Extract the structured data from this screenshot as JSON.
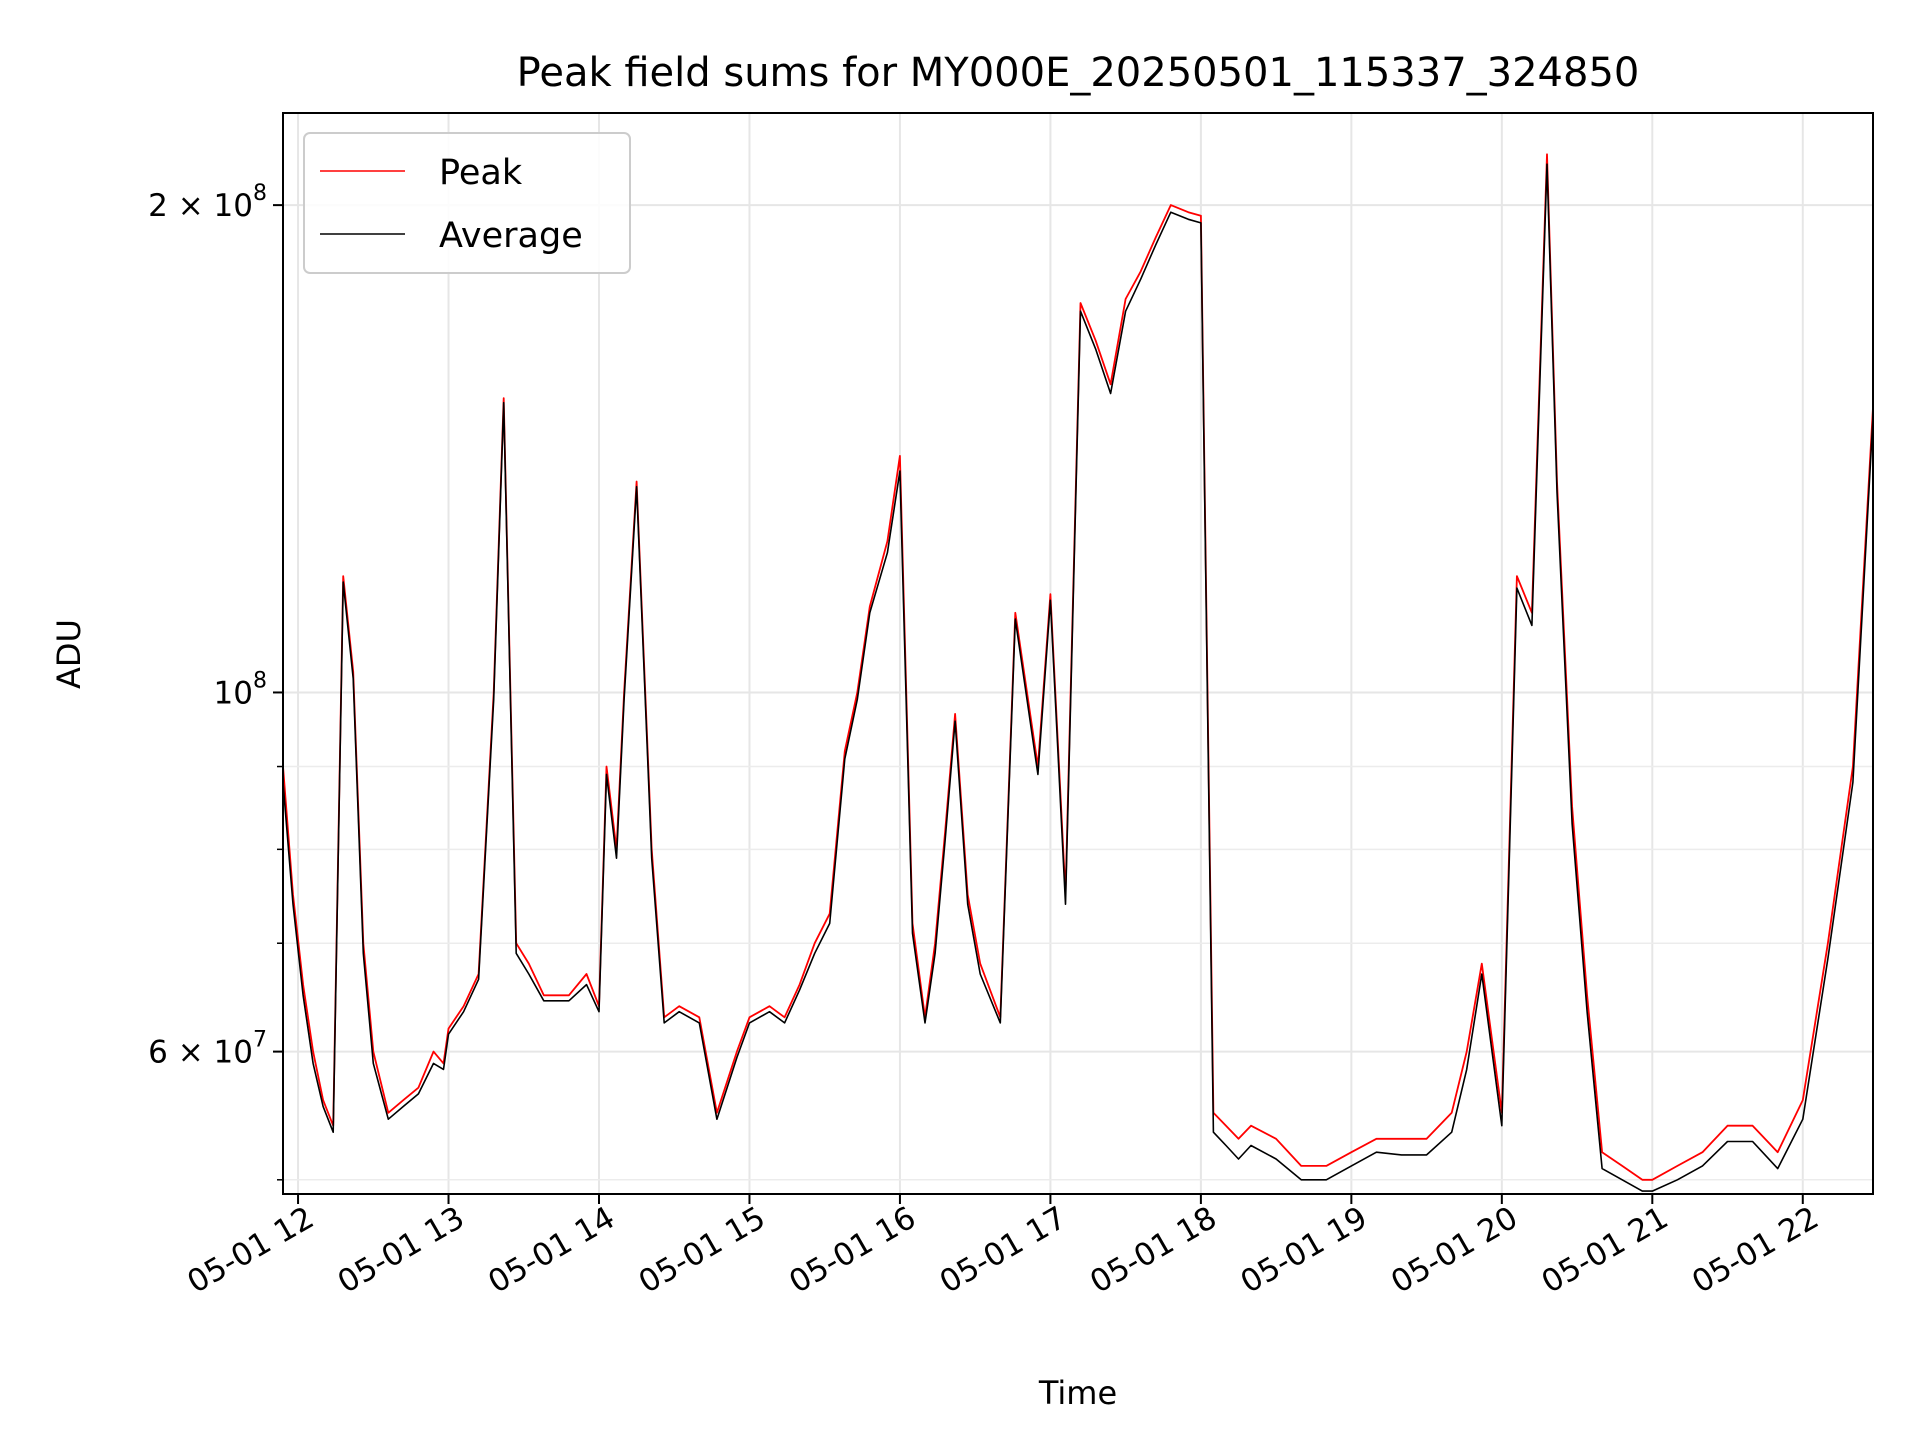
{
  "chart_data": {
    "type": "line",
    "title": "Peak field sums for MY000E_20250501_115337_324850",
    "xlabel": "Time",
    "ylabel": "ADU",
    "yscale": "log",
    "xlim": [
      "2025-05-01 11:54",
      "2025-05-01 22:28"
    ],
    "ylim": [
      49000000,
      228000000
    ],
    "grid": true,
    "legend": {
      "placement": "upper-left",
      "entries": [
        "Peak",
        "Average"
      ]
    },
    "x_ticks": [
      "05-01 12",
      "05-01 13",
      "05-01 14",
      "05-01 15",
      "05-01 16",
      "05-01 17",
      "05-01 18",
      "05-01 19",
      "05-01 20",
      "05-01 21",
      "05-01 22"
    ],
    "y_ticks": [
      {
        "value": 60000000,
        "label": "6 × 10^7",
        "mantissa": "6 ×",
        "base": "10",
        "exp": "7"
      },
      {
        "value": 100000000,
        "label": "10^8",
        "mantissa": "",
        "base": "10",
        "exp": "8"
      },
      {
        "value": 200000000,
        "label": "2 × 10^8",
        "mantissa": "2 ×",
        "base": "10",
        "exp": "8"
      }
    ],
    "y_minor_ticks": [
      50000000,
      70000000,
      80000000,
      90000000
    ],
    "series": [
      {
        "name": "Peak",
        "color": "#ff0000",
        "x": [
          "11:54",
          "11:58",
          "12:02",
          "12:06",
          "12:10",
          "12:14",
          "12:18",
          "12:22",
          "12:26",
          "12:30",
          "12:36",
          "12:42",
          "12:48",
          "12:54",
          "12:58",
          "13:00",
          "13:06",
          "13:12",
          "13:18",
          "13:22",
          "13:27",
          "13:32",
          "13:38",
          "13:48",
          "13:55",
          "14:00",
          "14:03",
          "14:07",
          "14:10",
          "14:15",
          "14:21",
          "14:26",
          "14:32",
          "14:40",
          "14:47",
          "14:55",
          "15:00",
          "15:08",
          "15:14",
          "15:20",
          "15:26",
          "15:32",
          "15:38",
          "15:43",
          "15:48",
          "15:55",
          "16:00",
          "16:05",
          "16:10",
          "16:14",
          "16:18",
          "16:22",
          "16:27",
          "16:32",
          "16:40",
          "16:46",
          "16:55",
          "17:00",
          "17:06",
          "17:12",
          "17:18",
          "17:24",
          "17:30",
          "17:36",
          "17:42",
          "17:48",
          "17:55",
          "18:00",
          "18:05",
          "18:10",
          "18:15",
          "18:20",
          "18:30",
          "18:40",
          "18:50",
          "19:00",
          "19:10",
          "19:20",
          "19:30",
          "19:40",
          "19:46",
          "19:52",
          "20:00",
          "20:06",
          "20:12",
          "20:18",
          "20:22",
          "20:28",
          "20:34",
          "20:40",
          "20:48",
          "20:56",
          "21:00",
          "21:10",
          "21:20",
          "21:30",
          "21:40",
          "21:50",
          "22:00",
          "22:10",
          "22:20",
          "22:28"
        ],
        "y": [
          90000000,
          75000000,
          66000000,
          60000000,
          56000000,
          54000000,
          118000000,
          103000000,
          70000000,
          60000000,
          55000000,
          56000000,
          57000000,
          60000000,
          59000000,
          62000000,
          64000000,
          67000000,
          100000000,
          152000000,
          70000000,
          68000000,
          65000000,
          65000000,
          67000000,
          64000000,
          90000000,
          80000000,
          100000000,
          135000000,
          80000000,
          63000000,
          64000000,
          63000000,
          55000000,
          60000000,
          63000000,
          64000000,
          63000000,
          66000000,
          70000000,
          73000000,
          92000000,
          100000000,
          113000000,
          124000000,
          140000000,
          72000000,
          63000000,
          70000000,
          82000000,
          97000000,
          75000000,
          68000000,
          63000000,
          112000000,
          90000000,
          115000000,
          75000000,
          174000000,
          165000000,
          155000000,
          175000000,
          182000000,
          191000000,
          200000000,
          198000000,
          197000000,
          55000000,
          54000000,
          53000000,
          54000000,
          53000000,
          51000000,
          51000000,
          52000000,
          53000000,
          53000000,
          53000000,
          55000000,
          60000000,
          68000000,
          55000000,
          118000000,
          112000000,
          215000000,
          135000000,
          85000000,
          65000000,
          52000000,
          51000000,
          50000000,
          50000000,
          51000000,
          52000000,
          54000000,
          54000000,
          52000000,
          56000000,
          70000000,
          90000000,
          150000000
        ]
      },
      {
        "name": "Average",
        "color": "#000000",
        "x": [
          "11:54",
          "11:58",
          "12:02",
          "12:06",
          "12:10",
          "12:14",
          "12:18",
          "12:22",
          "12:26",
          "12:30",
          "12:36",
          "12:42",
          "12:48",
          "12:54",
          "12:58",
          "13:00",
          "13:06",
          "13:12",
          "13:18",
          "13:22",
          "13:27",
          "13:32",
          "13:38",
          "13:48",
          "13:55",
          "14:00",
          "14:03",
          "14:07",
          "14:10",
          "14:15",
          "14:21",
          "14:26",
          "14:32",
          "14:40",
          "14:47",
          "14:55",
          "15:00",
          "15:08",
          "15:14",
          "15:20",
          "15:26",
          "15:32",
          "15:38",
          "15:43",
          "15:48",
          "15:55",
          "16:00",
          "16:05",
          "16:10",
          "16:14",
          "16:18",
          "16:22",
          "16:27",
          "16:32",
          "16:40",
          "16:46",
          "16:55",
          "17:00",
          "17:06",
          "17:12",
          "17:18",
          "17:24",
          "17:30",
          "17:36",
          "17:42",
          "17:48",
          "17:55",
          "18:00",
          "18:05",
          "18:10",
          "18:15",
          "18:20",
          "18:30",
          "18:40",
          "18:50",
          "19:00",
          "19:10",
          "19:20",
          "19:30",
          "19:40",
          "19:46",
          "19:52",
          "20:00",
          "20:06",
          "20:12",
          "20:18",
          "20:22",
          "20:28",
          "20:34",
          "20:40",
          "20:48",
          "20:56",
          "21:00",
          "21:10",
          "21:20",
          "21:30",
          "21:40",
          "21:50",
          "22:00",
          "22:10",
          "22:20",
          "22:28"
        ],
        "y": [
          88000000,
          74000000,
          65000000,
          59000000,
          55500000,
          53500000,
          117000000,
          102000000,
          69000000,
          59000000,
          54500000,
          55500000,
          56500000,
          59000000,
          58500000,
          61500000,
          63500000,
          66500000,
          99000000,
          151000000,
          69000000,
          67000000,
          64500000,
          64500000,
          66000000,
          63500000,
          89000000,
          79000000,
          99000000,
          134000000,
          79000000,
          62500000,
          63500000,
          62500000,
          54500000,
          59500000,
          62500000,
          63500000,
          62500000,
          65500000,
          69000000,
          72000000,
          91000000,
          99000000,
          112000000,
          122000000,
          137000000,
          71000000,
          62500000,
          69000000,
          81000000,
          96000000,
          74000000,
          67000000,
          62500000,
          111000000,
          89000000,
          114000000,
          74000000,
          172000000,
          163000000,
          153000000,
          172000000,
          180000000,
          189000000,
          198000000,
          196000000,
          195000000,
          53500000,
          52500000,
          51500000,
          52500000,
          51500000,
          50000000,
          50000000,
          51000000,
          52000000,
          51800000,
          51800000,
          53500000,
          58500000,
          67000000,
          54000000,
          116000000,
          110000000,
          212000000,
          133000000,
          83000000,
          63500000,
          50800000,
          50000000,
          49200000,
          49200000,
          50000000,
          51000000,
          52800000,
          52800000,
          50800000,
          54500000,
          68500000,
          88000000,
          148000000
        ]
      }
    ]
  }
}
